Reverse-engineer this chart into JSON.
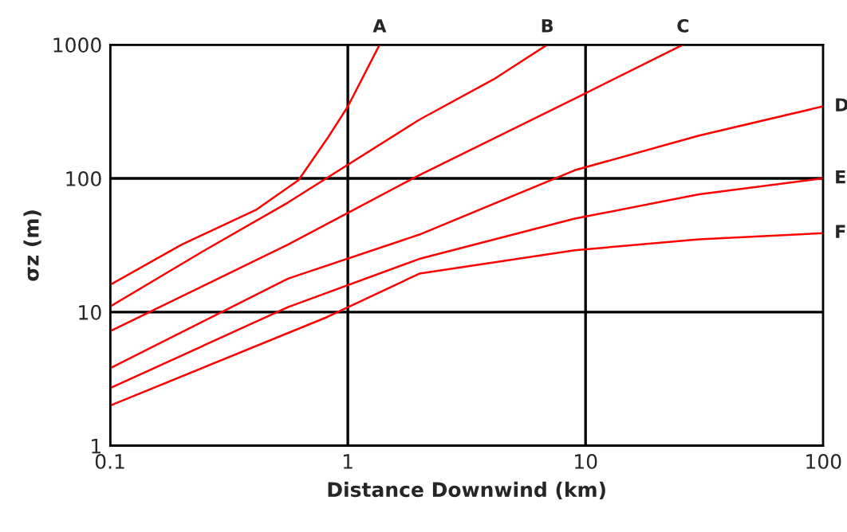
{
  "chart_data": {
    "type": "line",
    "xlabel": "Distance Downwind (km)",
    "ylabel": "σz (m)",
    "log": "xy",
    "xlim": [
      0.1,
      100
    ],
    "ylim": [
      1,
      1000
    ],
    "xticks": [
      0.1,
      1,
      10,
      100
    ],
    "yticks": [
      1,
      10,
      100,
      1000
    ],
    "grid": true,
    "marker": "none",
    "line_style": "solid",
    "series": [
      {
        "name": "A",
        "color": "#ff0000",
        "x": [
          0.1,
          0.2,
          0.41,
          0.62,
          0.82,
          1.0,
          1.36
        ],
        "values": [
          16,
          32,
          58,
          97,
          199,
          345,
          1000
        ]
      },
      {
        "name": "B",
        "color": "#ff0000",
        "x": [
          0.1,
          0.25,
          0.56,
          2.0,
          4.1,
          6.9
        ],
        "values": [
          11,
          29,
          66,
          275,
          550,
          1000
        ]
      },
      {
        "name": "C",
        "color": "#ff0000",
        "x": [
          0.1,
          0.56,
          2.0,
          9.0,
          25.7
        ],
        "values": [
          7.2,
          32,
          106,
          395,
          1000
        ]
      },
      {
        "name": "D",
        "color": "#ff0000",
        "x": [
          0.1,
          0.56,
          2.0,
          9.0,
          30,
          100
        ],
        "values": [
          3.8,
          17.8,
          38,
          115,
          209,
          346
        ]
      },
      {
        "name": "E",
        "color": "#ff0000",
        "x": [
          0.1,
          0.56,
          2.0,
          9.0,
          30,
          100
        ],
        "values": [
          2.7,
          10.9,
          25,
          50,
          76,
          100
        ]
      },
      {
        "name": "F",
        "color": "#ff0000",
        "x": [
          0.1,
          0.82,
          2.0,
          9.0,
          30,
          100
        ],
        "values": [
          2.0,
          9.2,
          19.4,
          29,
          35,
          39
        ]
      }
    ]
  }
}
